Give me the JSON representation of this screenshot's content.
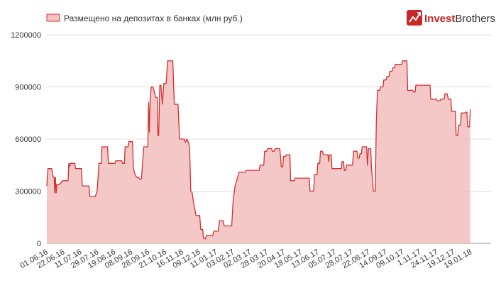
{
  "brand": {
    "logo_invest": "Invest",
    "logo_brothers": "Brothers",
    "logo_icon": "chart-arrow-icon",
    "accent_color": "#d32f2f"
  },
  "chart_data": {
    "type": "area",
    "title": "",
    "xlabel": "",
    "ylabel": "",
    "legend": {
      "position": "top-left",
      "entries": [
        "Размещено на депозитах в банках (млн руб.)"
      ]
    },
    "grid": true,
    "ylim": [
      0,
      1200000
    ],
    "y_ticks": [
      "0",
      "300000",
      "600000",
      "900000",
      "1200000"
    ],
    "x_ticks": [
      "01.06.16",
      "22.06.16",
      "11.07.16",
      "29.07.16",
      "19.08.16",
      "08.09.16",
      "28.09.16",
      "21.10.16",
      "16.11.16",
      "09.12.16",
      "11.01.17",
      "03.02.17",
      "02.03.17",
      "28.03.17",
      "20.04.17",
      "18.05.17",
      "13.06.17",
      "05.07.17",
      "28.07.17",
      "22.08.17",
      "14.09.17",
      "09.10.17",
      "1.11.17",
      "24.11.17",
      "19.12.17",
      "19.01.18"
    ],
    "line_color": "#d32f2f",
    "fill_color": "#f4c2c2",
    "series": [
      {
        "name": "Размещено на депозитах в банках (млн руб.)",
        "points": [
          [
            0.0,
            330000
          ],
          [
            0.3,
            430000
          ],
          [
            1.3,
            430000
          ],
          [
            1.7,
            380000
          ],
          [
            2.0,
            380000
          ],
          [
            2.1,
            290000
          ],
          [
            2.3,
            380000
          ],
          [
            2.5,
            290000
          ],
          [
            2.7,
            340000
          ],
          [
            3.5,
            340000
          ],
          [
            4.2,
            360000
          ],
          [
            5.7,
            360000
          ],
          [
            5.9,
            460000
          ],
          [
            6.1,
            440000
          ],
          [
            6.3,
            460000
          ],
          [
            7.5,
            460000
          ],
          [
            7.7,
            430000
          ],
          [
            9.3,
            430000
          ],
          [
            9.5,
            330000
          ],
          [
            11.3,
            330000
          ],
          [
            11.5,
            270000
          ],
          [
            13.0,
            270000
          ],
          [
            13.5,
            300000
          ],
          [
            14.0,
            460000
          ],
          [
            14.6,
            460000
          ],
          [
            14.8,
            555000
          ],
          [
            16.3,
            555000
          ],
          [
            16.5,
            460000
          ],
          [
            18.3,
            460000
          ],
          [
            18.5,
            475000
          ],
          [
            20.1,
            475000
          ],
          [
            20.3,
            460000
          ],
          [
            20.8,
            460000
          ],
          [
            21.0,
            555000
          ],
          [
            21.8,
            555000
          ],
          [
            22.0,
            585000
          ],
          [
            23.0,
            585000
          ],
          [
            23.2,
            430000
          ],
          [
            23.6,
            400000
          ],
          [
            24.1,
            380000
          ],
          [
            24.6,
            380000
          ],
          [
            24.8,
            370000
          ],
          [
            25.4,
            370000
          ],
          [
            25.6,
            440000
          ],
          [
            26.0,
            555000
          ],
          [
            27.1,
            555000
          ],
          [
            27.3,
            810000
          ],
          [
            27.5,
            640000
          ],
          [
            27.7,
            820000
          ],
          [
            28.0,
            900000
          ],
          [
            28.5,
            900000
          ],
          [
            29.2,
            840000
          ],
          [
            29.6,
            840000
          ],
          [
            29.8,
            620000
          ],
          [
            30.0,
            620000
          ],
          [
            30.3,
            910000
          ],
          [
            30.6,
            910000
          ],
          [
            31.0,
            800000
          ],
          [
            31.4,
            920000
          ],
          [
            32.0,
            920000
          ],
          [
            32.4,
            1050000
          ],
          [
            33.8,
            1050000
          ],
          [
            34.2,
            800000
          ],
          [
            35.2,
            800000
          ],
          [
            35.6,
            600000
          ],
          [
            36.9,
            600000
          ],
          [
            37.2,
            580000
          ],
          [
            37.6,
            600000
          ],
          [
            38.0,
            580000
          ],
          [
            38.3,
            550000
          ],
          [
            38.6,
            300000
          ],
          [
            39.0,
            290000
          ],
          [
            39.3,
            240000
          ],
          [
            39.7,
            200000
          ],
          [
            40.0,
            160000
          ],
          [
            41.0,
            160000
          ],
          [
            41.3,
            80000
          ],
          [
            41.8,
            80000
          ],
          [
            42.0,
            30000
          ],
          [
            42.5,
            25000
          ],
          [
            42.8,
            45000
          ],
          [
            44.5,
            45000
          ],
          [
            44.8,
            70000
          ],
          [
            46.0,
            70000
          ],
          [
            46.3,
            130000
          ],
          [
            47.3,
            130000
          ],
          [
            47.6,
            100000
          ],
          [
            49.6,
            100000
          ],
          [
            50.0,
            250000
          ],
          [
            50.5,
            330000
          ],
          [
            51.2,
            380000
          ],
          [
            51.6,
            410000
          ],
          [
            53.3,
            410000
          ],
          [
            53.5,
            420000
          ],
          [
            57.0,
            420000
          ],
          [
            57.2,
            450000
          ],
          [
            58.2,
            450000
          ],
          [
            58.4,
            530000
          ],
          [
            59.0,
            530000
          ],
          [
            59.2,
            545000
          ],
          [
            60.3,
            545000
          ],
          [
            60.5,
            530000
          ],
          [
            61.0,
            530000
          ],
          [
            61.2,
            545000
          ],
          [
            62.5,
            545000
          ],
          [
            62.7,
            500000
          ],
          [
            62.9,
            440000
          ],
          [
            63.3,
            440000
          ],
          [
            63.5,
            500000
          ],
          [
            64.0,
            500000
          ],
          [
            64.3,
            510000
          ],
          [
            65.2,
            510000
          ],
          [
            65.4,
            360000
          ],
          [
            66.4,
            360000
          ],
          [
            66.6,
            375000
          ],
          [
            70.4,
            375000
          ],
          [
            70.6,
            300000
          ],
          [
            71.6,
            300000
          ],
          [
            71.8,
            395000
          ],
          [
            72.5,
            395000
          ],
          [
            72.7,
            460000
          ],
          [
            73.2,
            460000
          ],
          [
            73.4,
            530000
          ],
          [
            73.9,
            530000
          ],
          [
            74.2,
            510000
          ],
          [
            75.4,
            510000
          ],
          [
            75.6,
            470000
          ],
          [
            75.8,
            510000
          ],
          [
            76.3,
            510000
          ],
          [
            76.5,
            430000
          ],
          [
            79.0,
            430000
          ],
          [
            79.2,
            470000
          ],
          [
            79.6,
            470000
          ],
          [
            79.8,
            420000
          ],
          [
            80.2,
            420000
          ],
          [
            80.4,
            450000
          ],
          [
            82.0,
            450000
          ],
          [
            82.3,
            530000
          ],
          [
            83.2,
            530000
          ],
          [
            83.4,
            490000
          ],
          [
            83.8,
            490000
          ],
          [
            84.0,
            515000
          ],
          [
            84.4,
            515000
          ],
          [
            84.6,
            555000
          ],
          [
            85.8,
            555000
          ],
          [
            86.0,
            450000
          ],
          [
            86.3,
            545000
          ],
          [
            86.9,
            545000
          ],
          [
            87.1,
            430000
          ],
          [
            87.3,
            380000
          ],
          [
            87.6,
            300000
          ],
          [
            88.1,
            300000
          ],
          [
            88.4,
            700000
          ],
          [
            88.7,
            880000
          ],
          [
            89.3,
            880000
          ],
          [
            89.5,
            900000
          ],
          [
            90.2,
            900000
          ],
          [
            90.4,
            940000
          ],
          [
            91.0,
            940000
          ],
          [
            91.2,
            960000
          ],
          [
            91.8,
            960000
          ],
          [
            92.0,
            990000
          ],
          [
            92.6,
            990000
          ],
          [
            92.8,
            1010000
          ],
          [
            93.3,
            1010000
          ],
          [
            93.5,
            1030000
          ],
          [
            95.2,
            1030000
          ],
          [
            95.4,
            1050000
          ],
          [
            96.6,
            1050000
          ],
          [
            96.8,
            880000
          ],
          [
            98.2,
            880000
          ],
          [
            98.4,
            870000
          ],
          [
            98.8,
            870000
          ],
          [
            99.0,
            910000
          ],
          [
            102.8,
            910000
          ],
          [
            103.0,
            830000
          ],
          [
            104.5,
            830000
          ],
          [
            104.7,
            820000
          ],
          [
            105.5,
            820000
          ],
          [
            105.7,
            830000
          ],
          [
            106.6,
            830000
          ],
          [
            106.8,
            860000
          ],
          [
            107.4,
            860000
          ],
          [
            107.7,
            830000
          ],
          [
            108.4,
            830000
          ],
          [
            108.6,
            760000
          ],
          [
            109.6,
            760000
          ],
          [
            109.8,
            620000
          ],
          [
            110.2,
            620000
          ],
          [
            110.5,
            680000
          ],
          [
            111.0,
            680000
          ],
          [
            111.2,
            750000
          ],
          [
            112.2,
            750000
          ],
          [
            112.4,
            755000
          ],
          [
            112.7,
            755000
          ],
          [
            112.9,
            670000
          ],
          [
            113.4,
            670000
          ],
          [
            113.6,
            770000
          ]
        ]
      }
    ]
  }
}
